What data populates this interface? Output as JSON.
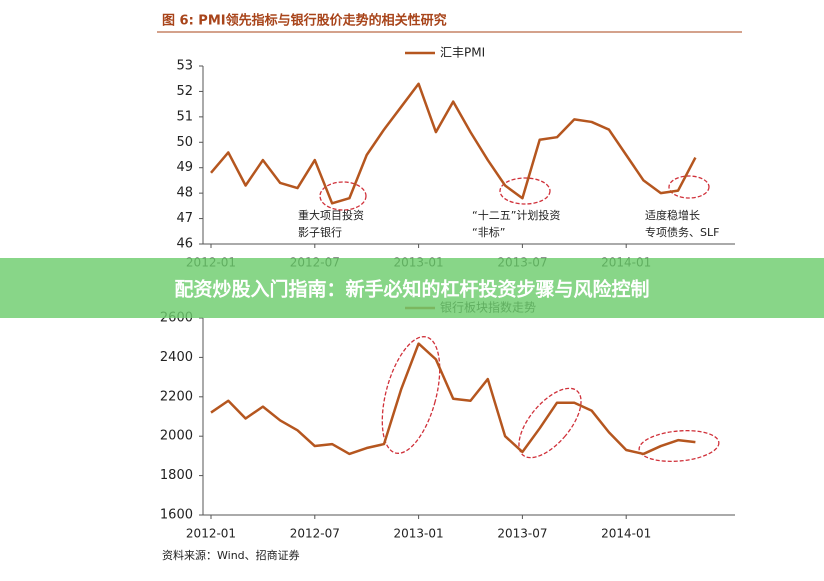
{
  "figure_title": "图 6: PMI领先指标与银行股价走势的相关性研究",
  "banner": "配资炒股入门指南：新手必知的杠杆投资步骤与风险控制",
  "source": "资料来源：Wind、招商证券",
  "chart_data": [
    {
      "type": "line",
      "categories": [
        "2012-01",
        null,
        null,
        null,
        null,
        null,
        "2012-07",
        null,
        null,
        null,
        null,
        null,
        "2013-01",
        null,
        null,
        null,
        null,
        null,
        "2013-07",
        null,
        null,
        null,
        null,
        null,
        "2014-01",
        null,
        null,
        null,
        null
      ],
      "series": [
        {
          "name": "汇丰PMI",
          "color": "#b5561f",
          "values": [
            48.8,
            49.6,
            48.3,
            49.3,
            48.4,
            48.2,
            49.3,
            47.6,
            47.8,
            49.5,
            50.5,
            51.4,
            52.3,
            50.4,
            51.6,
            50.4,
            49.3,
            48.3,
            47.8,
            50.1,
            50.2,
            50.9,
            50.8,
            50.5,
            49.5,
            48.5,
            48.0,
            48.1,
            49.4
          ]
        }
      ],
      "ylim": [
        46,
        53
      ],
      "yticks": [
        46,
        47,
        48,
        49,
        50,
        51,
        52,
        53
      ],
      "annotations": [
        [
          "重大项目投资",
          "影子银行"
        ],
        [
          "“十二五”计划投资",
          "“非标”"
        ],
        [
          "适度稳增长",
          "专项债务、SLF"
        ]
      ]
    },
    {
      "type": "line",
      "categories": [
        "2012-01",
        null,
        null,
        null,
        null,
        null,
        "2012-07",
        null,
        null,
        null,
        null,
        null,
        "2013-01",
        null,
        null,
        null,
        null,
        null,
        "2013-07",
        null,
        null,
        null,
        null,
        null,
        "2014-01",
        null,
        null,
        null,
        null
      ],
      "series": [
        {
          "name": "银行板块指数走势",
          "color": "#b5561f",
          "values": [
            2120,
            2180,
            2090,
            2150,
            2080,
            2030,
            1950,
            1960,
            1910,
            1940,
            1960,
            2240,
            2470,
            2390,
            2190,
            2180,
            2290,
            2000,
            1920,
            2040,
            2170,
            2170,
            2130,
            2020,
            1930,
            1910,
            1950,
            1980,
            1970
          ]
        }
      ],
      "ylim": [
        1600,
        2600
      ],
      "yticks": [
        1600,
        1800,
        2000,
        2200,
        2400,
        2600
      ]
    }
  ]
}
